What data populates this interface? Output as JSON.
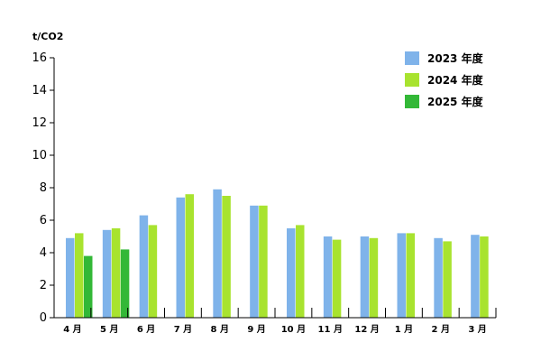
{
  "chart_data": {
    "type": "bar",
    "ylabel": "t/CO2",
    "ylim": [
      0,
      16
    ],
    "yticks": [
      0,
      2,
      4,
      6,
      8,
      10,
      12,
      14,
      16
    ],
    "categories": [
      "4 月",
      "5 月",
      "6 月",
      "7 月",
      "8 月",
      "9 月",
      "10 月",
      "11 月",
      "12 月",
      "1 月",
      "2 月",
      "3 月"
    ],
    "legend_position": "top-right",
    "grid": false,
    "series": [
      {
        "name": "2023 年度",
        "color": "#7fb3ea",
        "values": [
          4.9,
          5.4,
          6.3,
          7.4,
          7.9,
          6.9,
          5.5,
          5.0,
          5.0,
          5.2,
          4.9,
          5.1
        ]
      },
      {
        "name": "2024 年度",
        "color": "#a8e32f",
        "values": [
          5.2,
          5.5,
          5.7,
          7.6,
          7.5,
          6.9,
          5.7,
          4.8,
          4.9,
          5.2,
          4.7,
          5.0
        ]
      },
      {
        "name": "2025 年度",
        "color": "#33b837",
        "values": [
          3.8,
          4.2,
          null,
          null,
          null,
          null,
          null,
          null,
          null,
          null,
          null,
          null
        ]
      }
    ]
  }
}
